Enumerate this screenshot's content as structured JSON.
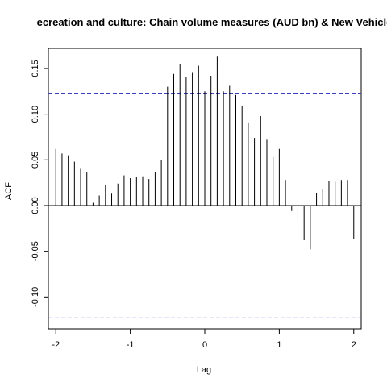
{
  "chart_data": {
    "type": "bar",
    "title": "ecreation and culture: Chain volume measures (AUD bn) & New Vehicle",
    "xlabel": "Lag",
    "ylabel": "ACF",
    "xlim": [
      -2.1,
      2.1
    ],
    "ylim": [
      -0.135,
      0.172
    ],
    "xticks": [
      -2,
      -1,
      0,
      1,
      2
    ],
    "xtick_labels": [
      "-2",
      "-1",
      "0",
      "1",
      "2"
    ],
    "yticks": [
      -0.1,
      -0.05,
      0.0,
      0.05,
      0.1,
      0.15
    ],
    "ytick_labels": [
      "-0.10",
      "-0.05",
      "0.00",
      "0.05",
      "0.10",
      "0.15"
    ],
    "confidence_bound": 0.123,
    "confidence_color": "#3b3bcf",
    "x": [
      -2.0,
      -1.9167,
      -1.8333,
      -1.75,
      -1.6667,
      -1.5833,
      -1.5,
      -1.4167,
      -1.3333,
      -1.25,
      -1.1667,
      -1.0833,
      -1.0,
      -0.9167,
      -0.8333,
      -0.75,
      -0.6667,
      -0.5833,
      -0.5,
      -0.4167,
      -0.3333,
      -0.25,
      -0.1667,
      -0.0833,
      0.0,
      0.0833,
      0.1667,
      0.25,
      0.3333,
      0.4167,
      0.5,
      0.5833,
      0.6667,
      0.75,
      0.8333,
      0.9167,
      1.0,
      1.0833,
      1.1667,
      1.25,
      1.3333,
      1.4167,
      1.5,
      1.5833,
      1.6667,
      1.75,
      1.8333,
      1.9167,
      2.0
    ],
    "values": [
      0.062,
      0.057,
      0.055,
      0.048,
      0.041,
      0.037,
      0.003,
      0.011,
      0.023,
      0.013,
      0.024,
      0.033,
      0.03,
      0.031,
      0.032,
      0.029,
      0.037,
      0.05,
      0.13,
      0.144,
      0.155,
      0.141,
      0.146,
      0.153,
      0.125,
      0.142,
      0.163,
      0.125,
      0.131,
      0.121,
      0.109,
      0.091,
      0.074,
      0.098,
      0.072,
      0.053,
      0.062,
      0.028,
      -0.006,
      -0.017,
      -0.038,
      -0.048,
      0.014,
      0.018,
      0.027,
      0.026,
      0.028,
      0.028,
      -0.037
    ]
  }
}
